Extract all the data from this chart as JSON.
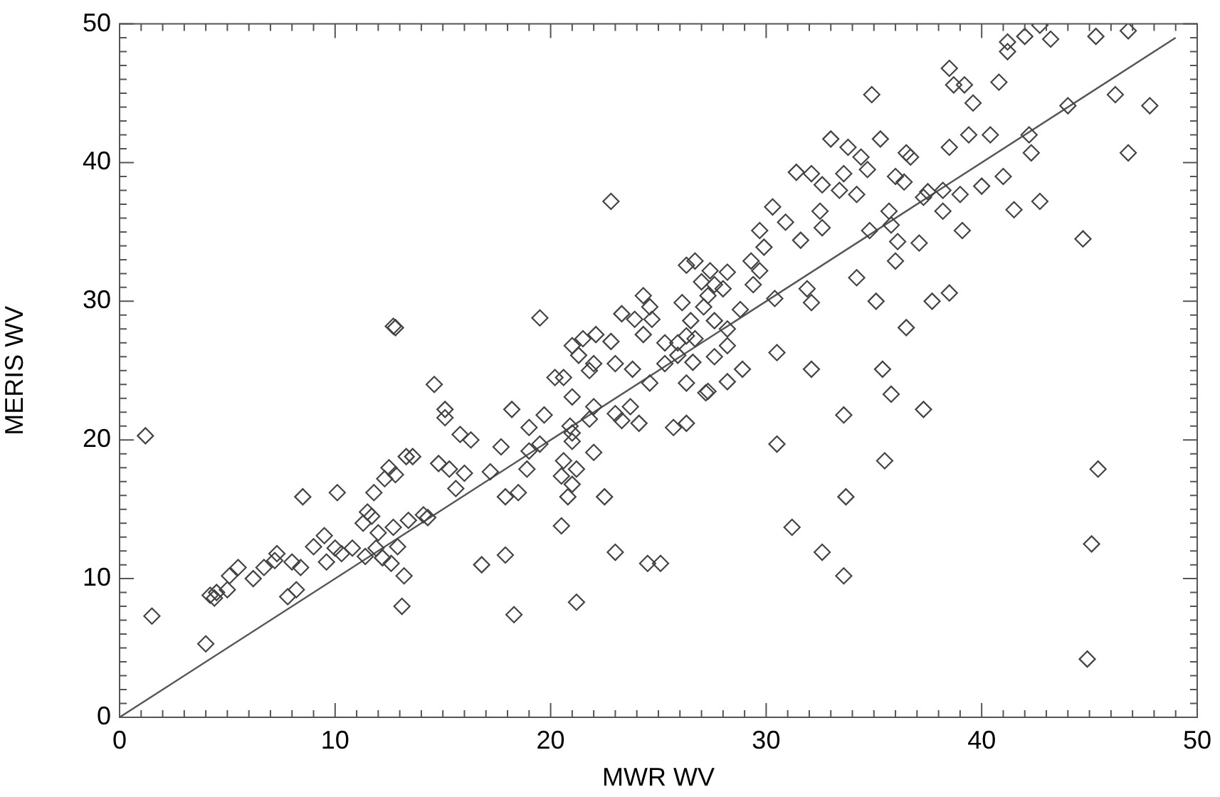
{
  "chart_data": {
    "type": "scatter",
    "xlabel": "MWR WV",
    "ylabel": "MERIS WV",
    "grid": false,
    "legend": false,
    "xlim": [
      0,
      50
    ],
    "ylim": [
      0,
      50
    ],
    "xticks": [
      0,
      {
        "value": 1,
        "label": null
      },
      {
        "value": 2,
        "label": null
      },
      {
        "value": 3,
        "label": null
      },
      {
        "value": 4,
        "label": null
      },
      {
        "value": 5,
        "label": null
      },
      {
        "value": 6,
        "label": null
      },
      {
        "value": 7,
        "label": null
      },
      {
        "value": 8,
        "label": null
      },
      {
        "value": 9,
        "label": null
      },
      10,
      {
        "value": 11,
        "label": null
      },
      {
        "value": 12,
        "label": null
      },
      {
        "value": 13,
        "label": null
      },
      {
        "value": 14,
        "label": null
      },
      {
        "value": 15,
        "label": null
      },
      {
        "value": 16,
        "label": null
      },
      {
        "value": 17,
        "label": null
      },
      {
        "value": 18,
        "label": null
      },
      {
        "value": 19,
        "label": null
      },
      20,
      {
        "value": 21,
        "label": null
      },
      {
        "value": 22,
        "label": null
      },
      {
        "value": 23,
        "label": null
      },
      {
        "value": 24,
        "label": null
      },
      {
        "value": 25,
        "label": null
      },
      {
        "value": 26,
        "label": null
      },
      {
        "value": 27,
        "label": null
      },
      {
        "value": 28,
        "label": null
      },
      {
        "value": 29,
        "label": null
      },
      30,
      {
        "value": 31,
        "label": null
      },
      {
        "value": 32,
        "label": null
      },
      {
        "value": 33,
        "label": null
      },
      {
        "value": 34,
        "label": null
      },
      {
        "value": 35,
        "label": null
      },
      {
        "value": 36,
        "label": null
      },
      {
        "value": 37,
        "label": null
      },
      {
        "value": 38,
        "label": null
      },
      {
        "value": 39,
        "label": null
      },
      40,
      {
        "value": 41,
        "label": null
      },
      {
        "value": 42,
        "label": null
      },
      {
        "value": 43,
        "label": null
      },
      {
        "value": 44,
        "label": null
      },
      {
        "value": 45,
        "label": null
      },
      {
        "value": 46,
        "label": null
      },
      {
        "value": 47,
        "label": null
      },
      {
        "value": 48,
        "label": null
      },
      {
        "value": 49,
        "label": null
      },
      50
    ],
    "yticks": [
      0,
      {
        "value": 1,
        "label": null
      },
      {
        "value": 2,
        "label": null
      },
      {
        "value": 3,
        "label": null
      },
      {
        "value": 4,
        "label": null
      },
      {
        "value": 5,
        "label": null
      },
      {
        "value": 6,
        "label": null
      },
      {
        "value": 7,
        "label": null
      },
      {
        "value": 8,
        "label": null
      },
      {
        "value": 9,
        "label": null
      },
      10,
      {
        "value": 11,
        "label": null
      },
      {
        "value": 12,
        "label": null
      },
      {
        "value": 13,
        "label": null
      },
      {
        "value": 14,
        "label": null
      },
      {
        "value": 15,
        "label": null
      },
      {
        "value": 16,
        "label": null
      },
      {
        "value": 17,
        "label": null
      },
      {
        "value": 18,
        "label": null
      },
      {
        "value": 19,
        "label": null
      },
      20,
      {
        "value": 21,
        "label": null
      },
      {
        "value": 22,
        "label": null
      },
      {
        "value": 23,
        "label": null
      },
      {
        "value": 24,
        "label": null
      },
      {
        "value": 25,
        "label": null
      },
      {
        "value": 26,
        "label": null
      },
      {
        "value": 27,
        "label": null
      },
      {
        "value": 28,
        "label": null
      },
      {
        "value": 29,
        "label": null
      },
      30,
      {
        "value": 31,
        "label": null
      },
      {
        "value": 32,
        "label": null
      },
      {
        "value": 33,
        "label": null
      },
      {
        "value": 34,
        "label": null
      },
      {
        "value": 35,
        "label": null
      },
      {
        "value": 36,
        "label": null
      },
      {
        "value": 37,
        "label": null
      },
      {
        "value": 38,
        "label": null
      },
      {
        "value": 39,
        "label": null
      },
      40,
      {
        "value": 41,
        "label": null
      },
      {
        "value": 42,
        "label": null
      },
      {
        "value": 43,
        "label": null
      },
      {
        "value": 44,
        "label": null
      },
      {
        "value": 45,
        "label": null
      },
      {
        "value": 46,
        "label": null
      },
      {
        "value": 47,
        "label": null
      },
      {
        "value": 48,
        "label": null
      },
      {
        "value": 49,
        "label": null
      },
      50
    ],
    "series": [
      {
        "color": "#444444",
        "marker": "diamond",
        "x": [
          1.2,
          1.5,
          4.0,
          4.2,
          4.4,
          4.5,
          5.0,
          5.1,
          5.5,
          6.2,
          6.7,
          7.2,
          7.3,
          7.8,
          8.0,
          8.2,
          8.4,
          8.5,
          9.0,
          9.5,
          9.6,
          10.0,
          10.1,
          10.3,
          10.8,
          11.3,
          11.4,
          11.5,
          11.7,
          11.8,
          11.9,
          12.0,
          12.2,
          12.3,
          12.5,
          12.6,
          12.7,
          12.8,
          12.9,
          13.1,
          13.2,
          13.3,
          13.4,
          13.6,
          14.1,
          14.3,
          12.7,
          12.8,
          14.6,
          15.1,
          15.1,
          15.8,
          16.3,
          14.8,
          15.3,
          15.6,
          16.0,
          17.2,
          16.8,
          17.9,
          18.3,
          20.5,
          21.2,
          23.0,
          24.5,
          25.1,
          22.5,
          20.8,
          18.5,
          17.9,
          18.9,
          20.5,
          21.2,
          21.0,
          20.6,
          22.0,
          19.0,
          19.5,
          17.7,
          21.0,
          21.0,
          20.9,
          19.0,
          19.7,
          18.2,
          21.0,
          21.8,
          22.0,
          23.0,
          23.7,
          23.3,
          24.1,
          25.7,
          26.3,
          27.2,
          28.2,
          30.5,
          31.2,
          32.6,
          33.6,
          33.6,
          33.7,
          22.8,
          19.5,
          33.0,
          33.8,
          31.4,
          32.1,
          32.6,
          33.6,
          30.3,
          30.9,
          32.5,
          32.6,
          31.6,
          29.7,
          29.9,
          29.3,
          29.7,
          29.4,
          30.4,
          31.9,
          32.1,
          26.3,
          26.7,
          27.4,
          28.2,
          27.6,
          27.0,
          28.0,
          27.3,
          26.1,
          27.1,
          28.8,
          28.2,
          27.6,
          26.5,
          26.3,
          26.7,
          25.9,
          25.3,
          24.6,
          24.3,
          23.9,
          24.7,
          23.3,
          24.3,
          22.8,
          21.5,
          22.1,
          21.0,
          21.3,
          22.0,
          21.8,
          20.2,
          20.6,
          23.0,
          23.8,
          25.3,
          25.9,
          26.6,
          27.6,
          28.2,
          28.9,
          30.5,
          32.1,
          27.3,
          26.3,
          24.6,
          34.9,
          38.5,
          38.7,
          39.2,
          39.6,
          40.8,
          41.2,
          41.2,
          42.0,
          42.7,
          43.2,
          45.3,
          46.8,
          46.2,
          47.8,
          44.0,
          46.8,
          42.2,
          42.3,
          40.4,
          39.4,
          38.5,
          41.0,
          40.0,
          39.0,
          38.2,
          38.2,
          37.5,
          37.3,
          36.0,
          36.4,
          36.5,
          36.7,
          35.3,
          34.7,
          34.4,
          33.4,
          34.2,
          35.7,
          35.8,
          34.8,
          36.1,
          37.1,
          36.0,
          39.1,
          41.5,
          42.7,
          44.7,
          34.2,
          35.1,
          37.7,
          38.5,
          36.5,
          35.4,
          35.8,
          37.3,
          35.5,
          45.4,
          45.1,
          44.9
        ],
        "values": [
          20.3,
          7.3,
          5.3,
          8.8,
          8.6,
          9.0,
          9.2,
          10.2,
          10.8,
          10.0,
          10.8,
          11.3,
          11.8,
          8.7,
          11.2,
          9.2,
          10.8,
          15.9,
          12.3,
          13.1,
          11.2,
          12.2,
          16.2,
          11.8,
          12.2,
          14.0,
          11.6,
          14.8,
          14.5,
          16.2,
          12.2,
          13.3,
          11.5,
          17.2,
          18.0,
          11.1,
          13.7,
          17.5,
          12.3,
          8.0,
          10.2,
          18.8,
          14.2,
          18.8,
          14.6,
          14.4,
          28.2,
          28.1,
          24.0,
          22.2,
          21.6,
          20.4,
          20.0,
          18.3,
          17.9,
          16.5,
          17.6,
          17.7,
          11.0,
          11.7,
          7.4,
          13.8,
          8.3,
          11.9,
          11.1,
          11.1,
          15.9,
          15.9,
          16.2,
          15.9,
          17.9,
          17.4,
          17.9,
          16.8,
          18.5,
          19.1,
          19.2,
          19.7,
          19.5,
          19.9,
          20.5,
          21.0,
          20.9,
          21.8,
          22.2,
          23.1,
          21.5,
          22.4,
          21.9,
          22.4,
          21.4,
          21.2,
          20.9,
          21.2,
          23.4,
          24.2,
          19.7,
          13.7,
          11.9,
          10.2,
          21.8,
          15.9,
          37.2,
          28.8,
          41.7,
          41.1,
          39.3,
          39.2,
          38.4,
          39.2,
          36.8,
          35.7,
          36.5,
          35.3,
          34.4,
          35.1,
          33.9,
          32.9,
          32.2,
          31.2,
          30.2,
          30.9,
          29.9,
          32.6,
          32.9,
          32.2,
          32.1,
          31.2,
          31.4,
          30.9,
          30.4,
          29.9,
          29.6,
          29.4,
          28.0,
          28.6,
          28.6,
          27.5,
          27.3,
          27.0,
          27.0,
          29.6,
          30.4,
          28.7,
          28.7,
          29.1,
          27.6,
          27.1,
          27.3,
          27.6,
          26.8,
          26.1,
          25.5,
          25.0,
          24.5,
          24.5,
          25.5,
          25.1,
          25.5,
          26.1,
          25.6,
          26.0,
          26.8,
          25.1,
          26.3,
          25.1,
          23.5,
          24.1,
          24.1,
          44.9,
          46.8,
          45.6,
          45.6,
          44.3,
          45.8,
          48.7,
          48.0,
          49.1,
          49.9,
          48.9,
          49.1,
          49.5,
          44.9,
          44.1,
          44.1,
          40.7,
          42.0,
          40.7,
          42.0,
          42.0,
          41.1,
          39.0,
          38.3,
          37.7,
          38.0,
          36.5,
          37.9,
          37.5,
          39.0,
          38.6,
          40.7,
          40.4,
          41.7,
          39.5,
          40.4,
          38.0,
          37.7,
          36.5,
          35.5,
          35.1,
          34.3,
          34.2,
          32.9,
          35.1,
          36.6,
          37.2,
          34.5,
          31.7,
          30.0,
          30.0,
          30.6,
          28.1,
          25.1,
          23.3,
          22.2,
          18.5,
          17.9,
          12.5,
          4.2
        ]
      },
      {
        "type": "line",
        "color": "#555555",
        "marker": "none",
        "x": [
          0,
          49
        ],
        "values": [
          0,
          49
        ]
      }
    ]
  }
}
